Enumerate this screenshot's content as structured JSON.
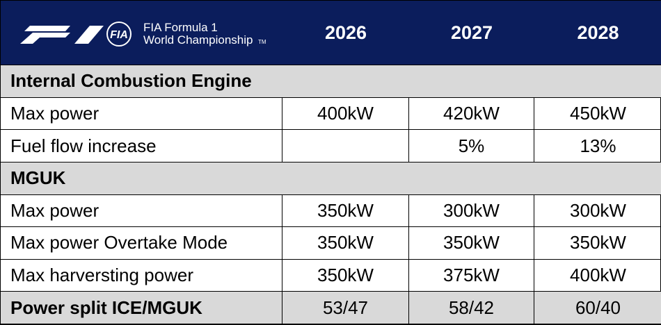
{
  "header": {
    "emblem": "FIA",
    "logo_lines": [
      "FIA Formula 1",
      "World Championship"
    ],
    "trademark": "TM",
    "columns": [
      "2026",
      "2027",
      "2028"
    ]
  },
  "table": {
    "sections": [
      {
        "title": "Internal Combustion Engine",
        "rows": [
          {
            "label": "Max power",
            "values": [
              "400kW",
              "420kW",
              "450kW"
            ]
          },
          {
            "label": "Fuel flow increase",
            "values": [
              null,
              "5%",
              "13%"
            ]
          }
        ]
      },
      {
        "title": "MGUK",
        "rows": [
          {
            "label": "Max power",
            "values": [
              "350kW",
              "300kW",
              "300kW"
            ]
          },
          {
            "label": "Max power Overtake Mode",
            "values": [
              "350kW",
              "350kW",
              "350kW"
            ]
          },
          {
            "label": "Max harversting power",
            "values": [
              "350kW",
              "375kW",
              "400kW"
            ]
          }
        ]
      }
    ],
    "footer": {
      "label": "Power split ICE/MGUK",
      "values": [
        "53/47",
        "58/42",
        "60/40"
      ]
    }
  }
}
